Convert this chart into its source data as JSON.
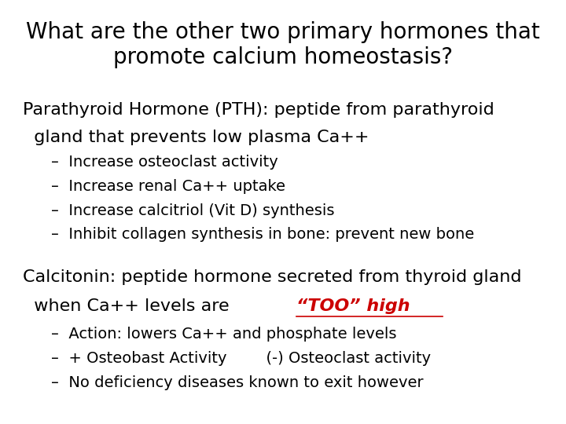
{
  "background_color": "#ffffff",
  "title_line1": "What are the other two primary hormones that",
  "title_line2": "promote calcium homeostasis?",
  "title_fontsize": 20,
  "title_color": "#000000",
  "pth_line1": "Parathyroid Hormone (PTH): peptide from parathyroid",
  "pth_line2": "  gland that prevents low plasma Ca++",
  "pth_fontsize": 16,
  "pth_color": "#000000",
  "bullets_pth": [
    "Increase osteoclast activity",
    "Increase renal Ca++ uptake",
    "Increase calcitriol (Vit D) synthesis",
    "Inhibit collagen synthesis in bone: prevent new bone"
  ],
  "bullet_fontsize": 14,
  "bullet_color": "#000000",
  "calcitonin_line1": "Calcitonin: peptide hormone secreted from thyroid gland",
  "calcitonin_line2_prefix": "  when Ca++ levels are ",
  "calcitonin_line2_highlight": "“TOO” high",
  "calcitonin_fontsize": 16,
  "calcitonin_color": "#000000",
  "highlight_color": "#cc0000",
  "bullets_calcitonin": [
    "Action: lowers Ca++ and phosphate levels",
    "+ Osteobast Activity        (-) Osteoclast activity",
    "No deficiency diseases known to exit however"
  ]
}
